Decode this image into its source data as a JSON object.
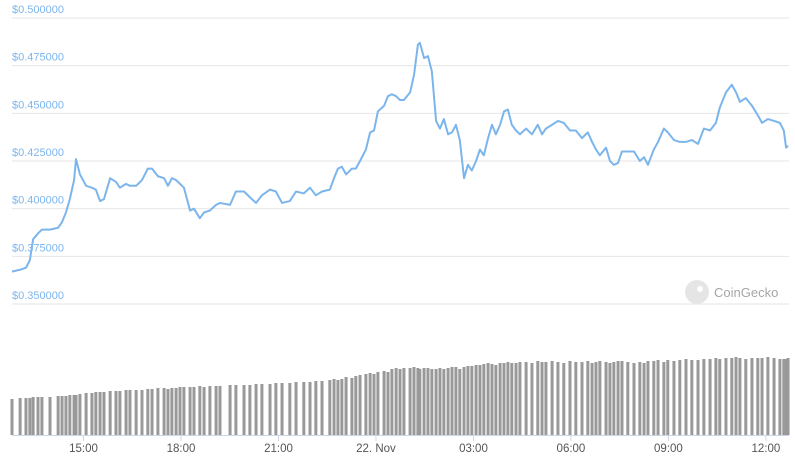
{
  "chart_data": {
    "type": "line",
    "watermark": "CoinGecko",
    "x": [
      12.8,
      13.05,
      13.23,
      13.35,
      13.45,
      13.6,
      13.72,
      13.97,
      14.22,
      14.34,
      14.46,
      14.58,
      14.71,
      14.77,
      14.89,
      15.08,
      15.26,
      15.38,
      15.51,
      15.63,
      15.82,
      16.0,
      16.12,
      16.31,
      16.43,
      16.62,
      16.8,
      16.98,
      17.11,
      17.29,
      17.48,
      17.6,
      17.72,
      17.85,
      17.97,
      18.09,
      18.28,
      18.4,
      18.58,
      18.71,
      18.89,
      19.08,
      19.2,
      19.51,
      19.69,
      19.94,
      20.12,
      20.31,
      20.49,
      20.74,
      20.92,
      21.11,
      21.35,
      21.54,
      21.78,
      21.97,
      22.15,
      22.34,
      22.58,
      22.71,
      22.83,
      22.95,
      23.08,
      23.26,
      23.38,
      23.51,
      23.69,
      23.82,
      23.94,
      24.06,
      24.25,
      24.37,
      24.49,
      24.62,
      24.74,
      24.86,
      25.05,
      25.17,
      25.29,
      25.35,
      25.48,
      25.6,
      25.72,
      25.85,
      25.97,
      26.09,
      26.22,
      26.34,
      26.46,
      26.58,
      26.71,
      26.83,
      26.95,
      27.08,
      27.2,
      27.32,
      27.45,
      27.57,
      27.69,
      27.82,
      27.94,
      28.06,
      28.18,
      28.31,
      28.43,
      28.62,
      28.8,
      28.98,
      29.11,
      29.23,
      29.42,
      29.6,
      29.78,
      29.97,
      30.15,
      30.34,
      30.52,
      30.65,
      30.77,
      30.89,
      31.08,
      31.2,
      31.32,
      31.45,
      31.57,
      31.75,
      31.94,
      32.12,
      32.25,
      32.37,
      32.55,
      32.68,
      32.86,
      32.98,
      33.17,
      33.35,
      33.54,
      33.72,
      33.91,
      34.09,
      34.28,
      34.46,
      34.58,
      34.77,
      34.95,
      35.08,
      35.2,
      35.38,
      35.57,
      35.75,
      35.88,
      36.06,
      36.25,
      36.43,
      36.55,
      36.62,
      36.68
    ],
    "series": [
      {
        "color": "#7cb5ec",
        "values": [
          0.367,
          0.368,
          0.369,
          0.373,
          0.384,
          0.387,
          0.389,
          0.389,
          0.39,
          0.393,
          0.398,
          0.405,
          0.415,
          0.426,
          0.418,
          0.412,
          0.411,
          0.41,
          0.404,
          0.405,
          0.416,
          0.414,
          0.411,
          0.413,
          0.412,
          0.412,
          0.415,
          0.421,
          0.421,
          0.417,
          0.416,
          0.412,
          0.416,
          0.415,
          0.413,
          0.411,
          0.399,
          0.4,
          0.395,
          0.398,
          0.399,
          0.402,
          0.403,
          0.402,
          0.409,
          0.409,
          0.406,
          0.403,
          0.407,
          0.41,
          0.409,
          0.403,
          0.404,
          0.409,
          0.408,
          0.411,
          0.407,
          0.409,
          0.41,
          0.416,
          0.421,
          0.422,
          0.418,
          0.421,
          0.421,
          0.425,
          0.431,
          0.44,
          0.441,
          0.451,
          0.454,
          0.459,
          0.46,
          0.459,
          0.457,
          0.457,
          0.461,
          0.47,
          0.486,
          0.487,
          0.479,
          0.48,
          0.472,
          0.446,
          0.442,
          0.447,
          0.439,
          0.44,
          0.444,
          0.436,
          0.416,
          0.423,
          0.42,
          0.425,
          0.431,
          0.428,
          0.437,
          0.444,
          0.439,
          0.444,
          0.451,
          0.452,
          0.444,
          0.441,
          0.439,
          0.442,
          0.439,
          0.444,
          0.439,
          0.442,
          0.444,
          0.446,
          0.445,
          0.441,
          0.441,
          0.437,
          0.44,
          0.435,
          0.431,
          0.428,
          0.432,
          0.425,
          0.423,
          0.424,
          0.43,
          0.43,
          0.43,
          0.425,
          0.427,
          0.423,
          0.431,
          0.435,
          0.442,
          0.44,
          0.436,
          0.435,
          0.435,
          0.436,
          0.434,
          0.442,
          0.441,
          0.445,
          0.453,
          0.461,
          0.465,
          0.461,
          0.456,
          0.458,
          0.454,
          0.449,
          0.445,
          0.447,
          0.446,
          0.445,
          0.441,
          0.432,
          0.433
        ]
      },
      {
        "type": "bar",
        "color": "#999999",
        "values": [
          36,
          37,
          37,
          37,
          38,
          38,
          38,
          38,
          39,
          39,
          39,
          40,
          40,
          40,
          41,
          42,
          42,
          43,
          43,
          43,
          44,
          44,
          44,
          45,
          45,
          45,
          45,
          46,
          46,
          47,
          47,
          46,
          47,
          47,
          48,
          48,
          48,
          48,
          49,
          48,
          49,
          49,
          49,
          50,
          50,
          50,
          50,
          51,
          51,
          51,
          52,
          52,
          52,
          53,
          53,
          53,
          54,
          54,
          55,
          56,
          55,
          56,
          58,
          57,
          59,
          60,
          61,
          62,
          61,
          63,
          64,
          63,
          66,
          67,
          66,
          67,
          67,
          68,
          67,
          66,
          67,
          67,
          66,
          66,
          67,
          66,
          67,
          68,
          68,
          66,
          68,
          69,
          69,
          70,
          70,
          71,
          72,
          71,
          70,
          72,
          72,
          73,
          72,
          72,
          73,
          73,
          72,
          74,
          73,
          73,
          74,
          73,
          72,
          74,
          73,
          73,
          74,
          72,
          73,
          74,
          73,
          72,
          73,
          74,
          74,
          73,
          72,
          73,
          72,
          74,
          74,
          75,
          73,
          75,
          74,
          75,
          76,
          75,
          75,
          76,
          76,
          77,
          76,
          77,
          77,
          78,
          77,
          76,
          77,
          77,
          77,
          78,
          77,
          76,
          76,
          76,
          77
        ]
      }
    ],
    "xlim": [
      12.8,
      36.71
    ],
    "xticks": [
      {
        "value": 15,
        "label": "15:00"
      },
      {
        "value": 18,
        "label": "18:00"
      },
      {
        "value": 21,
        "label": "21:00"
      },
      {
        "value": 24,
        "label": "22. Nov"
      },
      {
        "value": 27,
        "label": "03:00"
      },
      {
        "value": 30,
        "label": "06:00"
      },
      {
        "value": 33,
        "label": "09:00"
      },
      {
        "value": 36,
        "label": "12:00"
      }
    ],
    "ylim": [
      0.35,
      0.5
    ],
    "yticks": [
      {
        "value": 0.35,
        "label": "$0.350000"
      },
      {
        "value": 0.375,
        "label": "$0.375000"
      },
      {
        "value": 0.4,
        "label": "$0.400000"
      },
      {
        "value": 0.425,
        "label": "$0.425000"
      },
      {
        "value": 0.45,
        "label": "$0.450000"
      },
      {
        "value": 0.475,
        "label": "$0.475000"
      },
      {
        "value": 0.5,
        "label": "$0.500000"
      }
    ],
    "grid": true
  }
}
